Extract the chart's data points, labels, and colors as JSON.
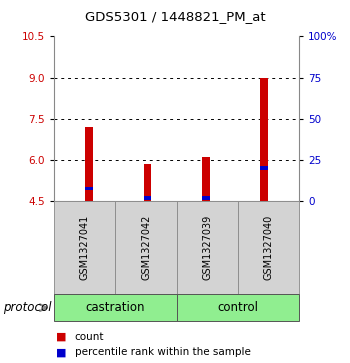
{
  "title": "GDS5301 / 1448821_PM_at",
  "samples": [
    "GSM1327041",
    "GSM1327042",
    "GSM1327039",
    "GSM1327040"
  ],
  "red_values": [
    7.2,
    5.85,
    6.1,
    9.0
  ],
  "blue_values": [
    4.97,
    4.62,
    4.62,
    5.72
  ],
  "ymin": 4.5,
  "ymax": 10.5,
  "yticks_left": [
    4.5,
    6.0,
    7.5,
    9.0,
    10.5
  ],
  "yticks_right": [
    0,
    25,
    50,
    75,
    100
  ],
  "yright_min": 0,
  "yright_max": 100,
  "bar_width": 0.13,
  "bar_color_red": "#cc0000",
  "bar_color_blue": "#0000cc",
  "bg_color": "#ffffff",
  "plot_bg": "#ffffff",
  "label_color_left": "#cc0000",
  "label_color_right": "#0000cc",
  "sample_box_color": "#d3d3d3",
  "group_color": "#90EE90",
  "protocol_label": "protocol",
  "legend_count": "count",
  "legend_pct": "percentile rank within the sample",
  "group_labels": [
    "castration",
    "control"
  ],
  "group_starts": [
    0,
    2
  ],
  "group_ends": [
    2,
    4
  ]
}
